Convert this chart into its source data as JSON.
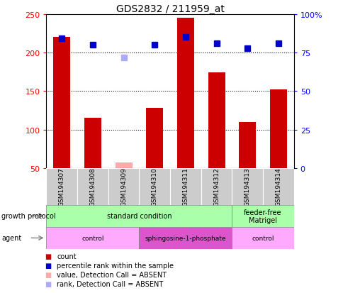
{
  "title": "GDS2832 / 211959_at",
  "samples": [
    "GSM194307",
    "GSM194308",
    "GSM194309",
    "GSM194310",
    "GSM194311",
    "GSM194312",
    "GSM194313",
    "GSM194314"
  ],
  "count_values": [
    220,
    115,
    null,
    128,
    245,
    174,
    110,
    152
  ],
  "count_absent": [
    null,
    null,
    57,
    null,
    null,
    null,
    null,
    null
  ],
  "rank_pct": [
    84,
    80,
    null,
    80,
    85,
    81,
    78,
    81
  ],
  "rank_absent_pct": [
    null,
    null,
    72,
    null,
    null,
    null,
    null,
    null
  ],
  "ylim_left": [
    50,
    250
  ],
  "ylim_right": [
    0,
    100
  ],
  "yticks_left": [
    50,
    100,
    150,
    200,
    250
  ],
  "yticks_right": [
    0,
    25,
    50,
    75,
    100
  ],
  "ytick_labels_right": [
    "0",
    "25",
    "50",
    "75",
    "100%"
  ],
  "bar_color": "#cc0000",
  "absent_bar_color": "#ffaaaa",
  "rank_color": "#0000cc",
  "rank_absent_color": "#aaaaff",
  "growth_groups": [
    {
      "label": "standard condition",
      "start": 0,
      "end": 6,
      "color": "#aaffaa"
    },
    {
      "label": "feeder-free\nMatrigel",
      "start": 6,
      "end": 8,
      "color": "#aaffaa"
    }
  ],
  "agent_groups": [
    {
      "label": "control",
      "start": 0,
      "end": 3,
      "color": "#ffaaff"
    },
    {
      "label": "sphingosine-1-phosphate",
      "start": 3,
      "end": 6,
      "color": "#dd55dd"
    },
    {
      "label": "control",
      "start": 6,
      "end": 8,
      "color": "#ffaaff"
    }
  ],
  "legend_items": [
    {
      "label": "count",
      "color": "#cc0000"
    },
    {
      "label": "percentile rank within the sample",
      "color": "#0000cc"
    },
    {
      "label": "value, Detection Call = ABSENT",
      "color": "#ffaaaa"
    },
    {
      "label": "rank, Detection Call = ABSENT",
      "color": "#aaaaff"
    }
  ],
  "bar_width": 0.55,
  "marker_size": 6
}
